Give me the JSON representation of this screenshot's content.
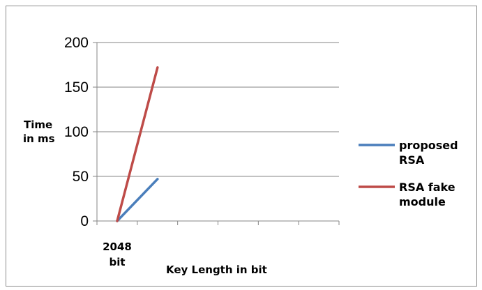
{
  "chart_data": {
    "type": "line",
    "categories": [
      [
        "2048",
        "bit"
      ]
    ],
    "ylabel": [
      "Time",
      "in ms"
    ],
    "xlabel": "Key Length in bit",
    "ylim": [
      0,
      200
    ],
    "yticks": [
      "0",
      "50",
      "100",
      "150",
      "200"
    ],
    "grid": true,
    "legend_position": "right",
    "series": [
      {
        "name": [
          "proposed",
          "RSA"
        ],
        "color": "#4a7ebb",
        "x": [
          0,
          1
        ],
        "y": [
          0,
          47
        ]
      },
      {
        "name": [
          "RSA fake",
          "module"
        ],
        "color": "#be4b48",
        "x": [
          0,
          1
        ],
        "y": [
          0,
          172
        ]
      }
    ]
  }
}
